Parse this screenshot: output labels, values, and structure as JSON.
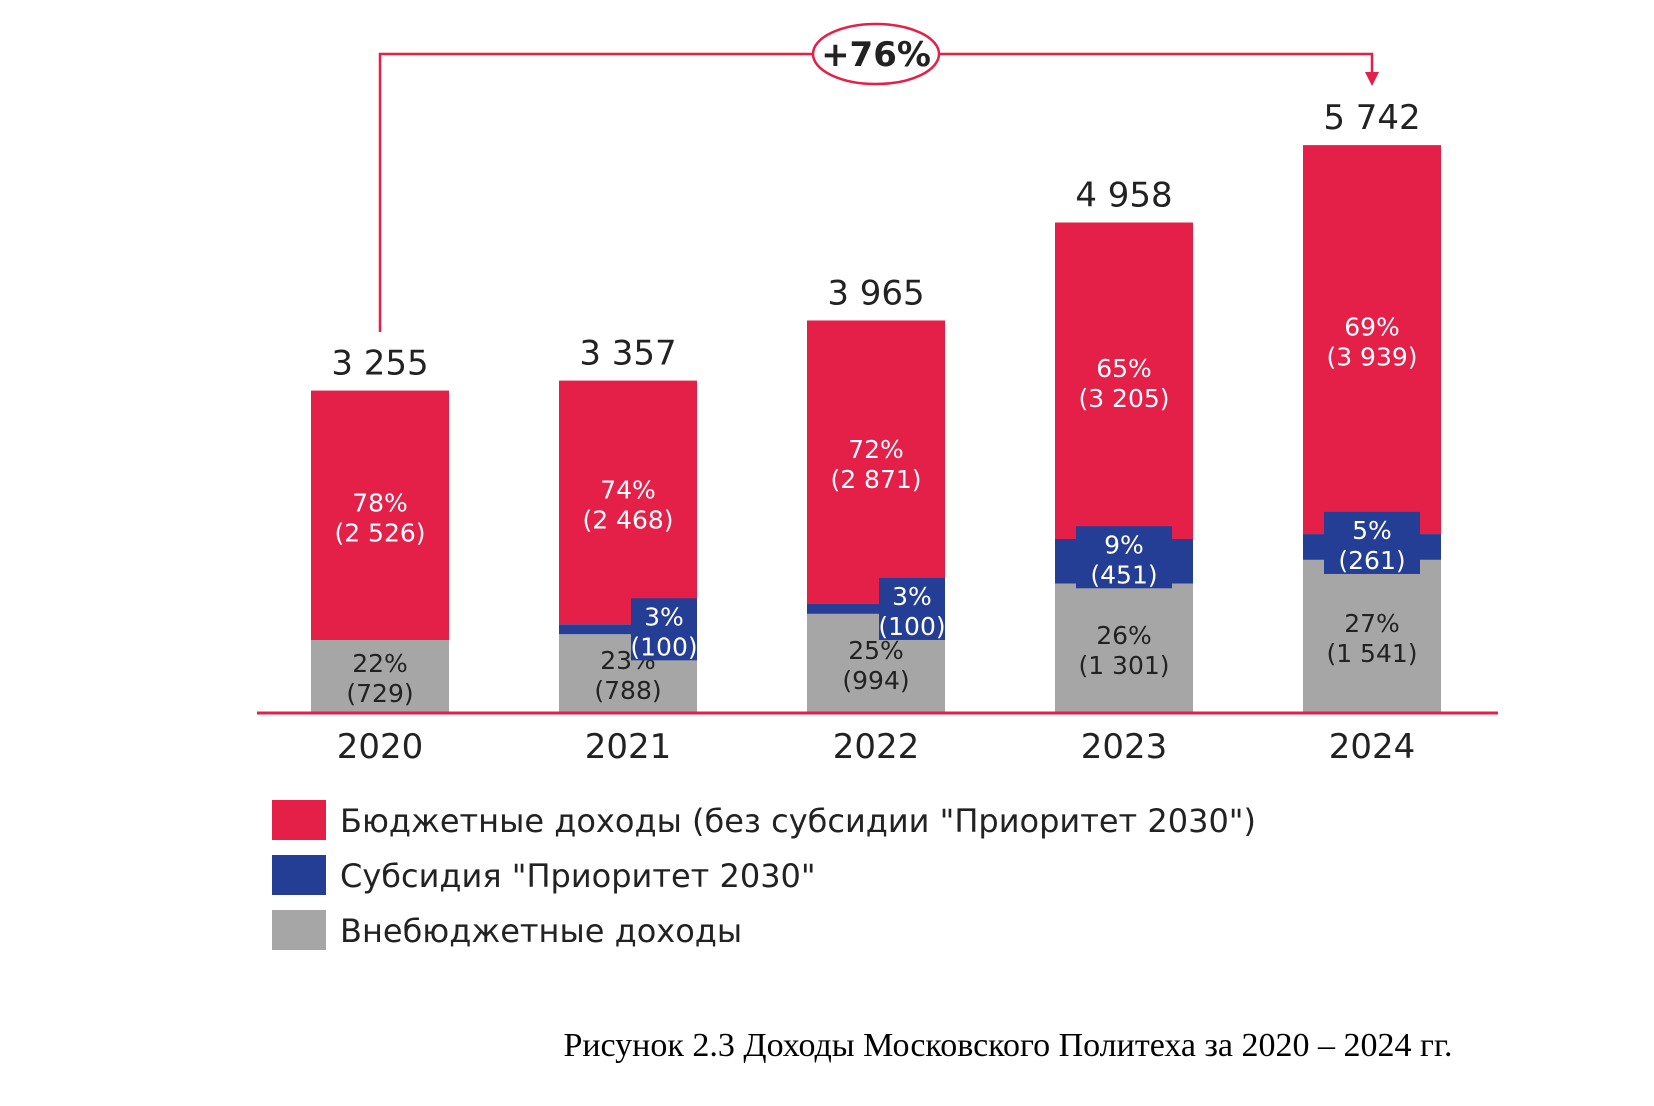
{
  "colors": {
    "budget": "#e41f48",
    "subsidy": "#233e94",
    "extrabudget": "#a6a6a6",
    "baseline": "#e41f48",
    "text": "#222222",
    "label_light": "#ffffff"
  },
  "chart_data": {
    "type": "bar",
    "stacked": true,
    "categories": [
      "2020",
      "2021",
      "2022",
      "2023",
      "2024"
    ],
    "totals": [
      "3 255",
      "3 357",
      "3 965",
      "4 958",
      "5 742"
    ],
    "total_values": [
      3255,
      3357,
      3965,
      4958,
      5742
    ],
    "ylim": [
      0,
      5742
    ],
    "grid": false,
    "legend_position": "bottom-left",
    "series": [
      {
        "key": "extrabudget",
        "name": "Внебюджетные доходы",
        "values": [
          729,
          788,
          994,
          1301,
          1541
        ],
        "pct_labels": [
          "22%",
          "23%",
          "25%",
          "26%",
          "27%"
        ],
        "val_labels": [
          "(729)",
          "(788)",
          "(994)",
          "(1 301)",
          "(1 541)"
        ]
      },
      {
        "key": "subsidy",
        "name": "Субсидия \"Приоритет 2030\"",
        "values": [
          0,
          100,
          100,
          451,
          261
        ],
        "pct_labels": [
          "",
          "3%",
          "3%",
          "9%",
          "5%"
        ],
        "val_labels": [
          "",
          "(100)",
          "(100)",
          "(451)",
          "(261)"
        ]
      },
      {
        "key": "budget",
        "name": "Бюджетные доходы (без субсидии \"Приоритет 2030\")",
        "values": [
          2526,
          2468,
          2871,
          3205,
          3939
        ],
        "pct_labels": [
          "78%",
          "74%",
          "72%",
          "65%",
          "69%"
        ],
        "val_labels": [
          "(2 526)",
          "(2 468)",
          "(2 871)",
          "(3 205)",
          "(3 939)"
        ]
      }
    ],
    "growth_annotation": "+76%",
    "growth_from": "2020",
    "growth_to": "2024"
  },
  "legend": [
    {
      "key": "budget",
      "label": "Бюджетные доходы (без субсидии \"Приоритет 2030\")"
    },
    {
      "key": "subsidy",
      "label": "Субсидия \"Приоритет 2030\""
    },
    {
      "key": "extrabudget",
      "label": "Внебюджетные доходы"
    }
  ],
  "caption": "Рисунок 2.3 Доходы Московского Политеха за 2020 – 2024 гг."
}
